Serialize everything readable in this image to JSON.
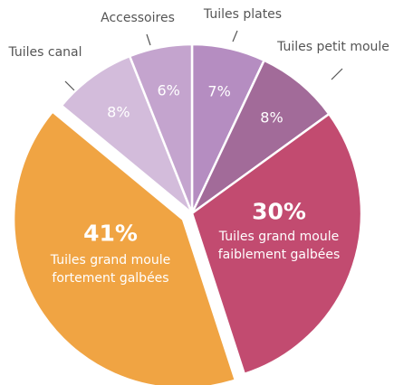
{
  "chart_data": {
    "type": "pie",
    "categories": [
      "Tuiles plates",
      "Tuiles petit moule",
      "Tuiles grand moule faiblement galbées",
      "Tuiles grand moule fortement galbées",
      "Tuiles canal",
      "Accessoires"
    ],
    "values": [
      7,
      8,
      30,
      41,
      8,
      6
    ],
    "value_labels": [
      "7%",
      "8%",
      "30%",
      "41%",
      "8%",
      "6%"
    ],
    "colors": [
      "#b58dc1",
      "#a26b99",
      "#c24b70",
      "#f0a443",
      "#d3bcdb",
      "#c4a4ce"
    ]
  }
}
